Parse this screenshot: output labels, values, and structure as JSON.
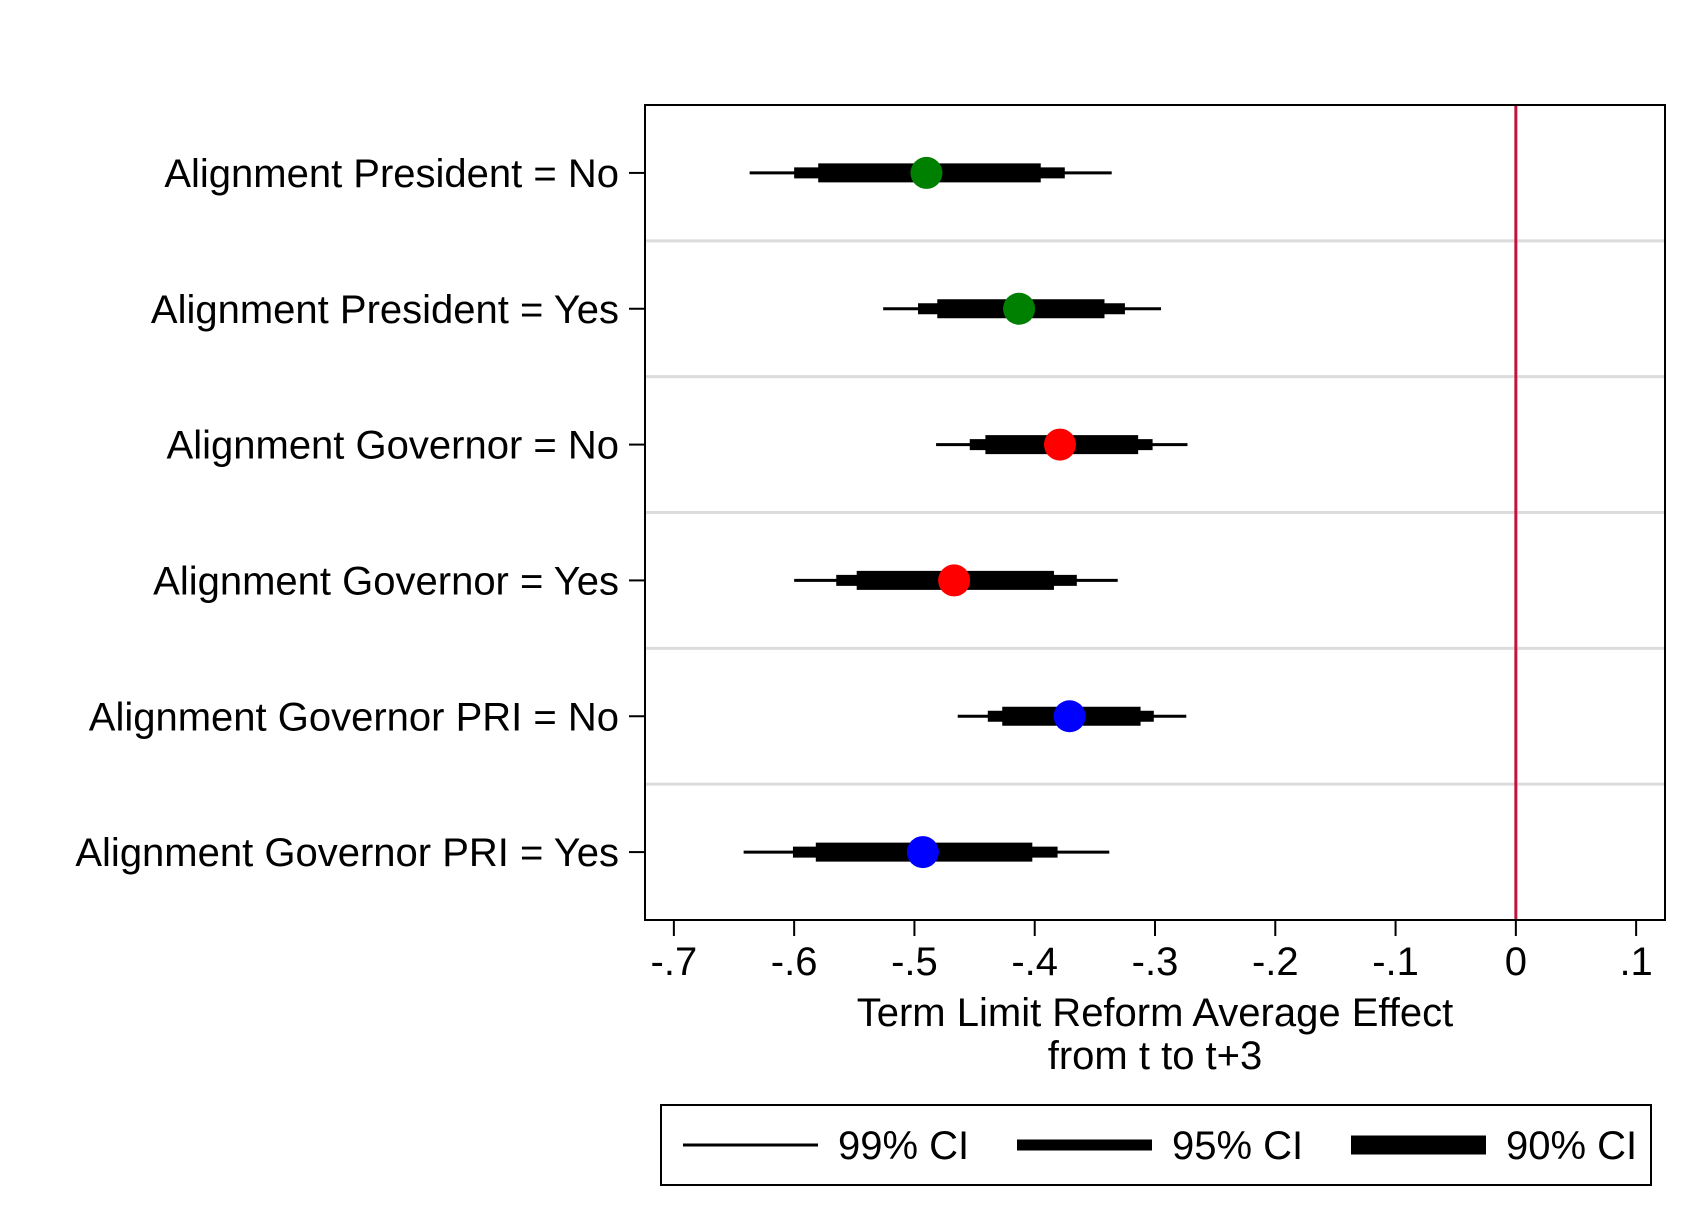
{
  "chart_data": {
    "type": "coefficient-plot",
    "xlabel_lines": [
      "Term Limit Reform Average Effect",
      "from t to t+3"
    ],
    "xlim": [
      -0.724,
      0.124
    ],
    "x_ticks": [
      -0.7,
      -0.6,
      -0.5,
      -0.4,
      -0.3,
      -0.2,
      -0.1,
      0,
      0.1
    ],
    "x_tick_labels": [
      "-.7",
      "-.6",
      "-.5",
      "-.4",
      "-.3",
      "-.2",
      "-.1",
      "0",
      ".1"
    ],
    "reference_line": {
      "x": 0,
      "color": "#c0143c"
    },
    "grid": "horizontal separators between rows",
    "legend_position": "bottom",
    "legend": [
      {
        "label": "99% CI",
        "style": "thin"
      },
      {
        "label": "95% CI",
        "style": "medium"
      },
      {
        "label": "90% CI",
        "style": "thick"
      }
    ],
    "rows": [
      {
        "label": "Alignment President = No",
        "estimate": -0.49,
        "color": "#008000",
        "ci99": [
          -0.637,
          -0.336
        ],
        "ci95": [
          -0.6,
          -0.375
        ],
        "ci90": [
          -0.58,
          -0.395
        ]
      },
      {
        "label": "Alignment President = Yes",
        "estimate": -0.413,
        "color": "#008000",
        "ci99": [
          -0.526,
          -0.295
        ],
        "ci95": [
          -0.497,
          -0.325
        ],
        "ci90": [
          -0.481,
          -0.342
        ]
      },
      {
        "label": "Alignment Governor = No",
        "estimate": -0.379,
        "color": "#ff0000",
        "ci99": [
          -0.482,
          -0.273
        ],
        "ci95": [
          -0.454,
          -0.302
        ],
        "ci90": [
          -0.441,
          -0.314
        ]
      },
      {
        "label": "Alignment Governor = Yes",
        "estimate": -0.467,
        "color": "#ff0000",
        "ci99": [
          -0.6,
          -0.331
        ],
        "ci95": [
          -0.565,
          -0.365
        ],
        "ci90": [
          -0.548,
          -0.384
        ]
      },
      {
        "label": "Alignment Governor PRI = No",
        "estimate": -0.371,
        "color": "#0000ff",
        "ci99": [
          -0.464,
          -0.274
        ],
        "ci95": [
          -0.439,
          -0.301
        ],
        "ci90": [
          -0.427,
          -0.312
        ]
      },
      {
        "label": "Alignment Governor PRI = Yes",
        "estimate": -0.493,
        "color": "#0000ff",
        "ci99": [
          -0.642,
          -0.338
        ],
        "ci95": [
          -0.601,
          -0.381
        ],
        "ci90": [
          -0.582,
          -0.402
        ]
      }
    ]
  }
}
